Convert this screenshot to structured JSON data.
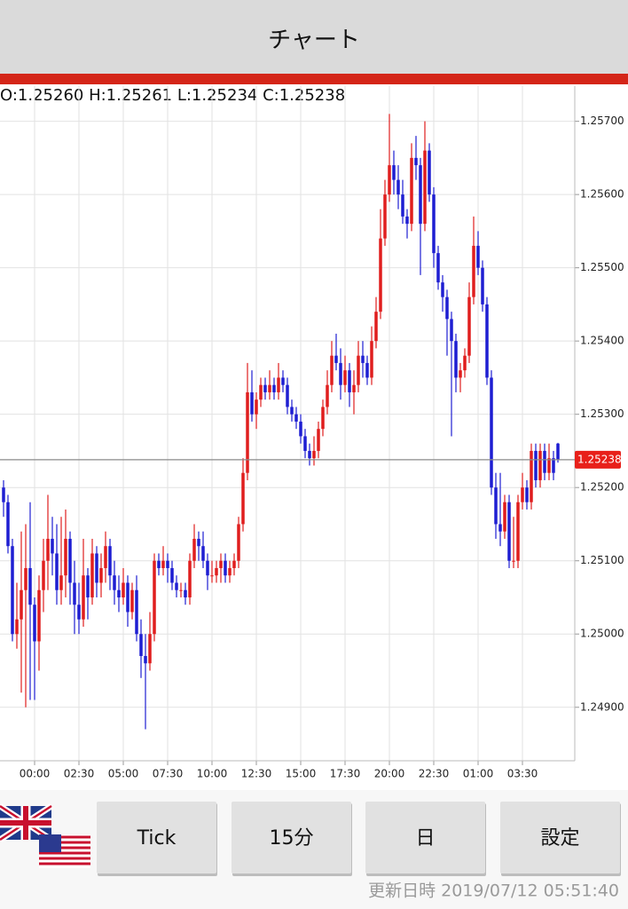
{
  "header": {
    "title": "チャート"
  },
  "chart_data": {
    "type": "candlestick",
    "ohlc_text": "O:1.25260 H:1.25261 L:1.25234 C:1.25238",
    "up_color": "#e01e1e",
    "down_color": "#1e1ed2",
    "grid": true,
    "ylim": [
      1.24827,
      1.25748
    ],
    "yticks": [
      {
        "value": 1.249,
        "label": "1.24900"
      },
      {
        "value": 1.25,
        "label": "1.25000"
      },
      {
        "value": 1.251,
        "label": "1.25100"
      },
      {
        "value": 1.252,
        "label": "1.25200"
      },
      {
        "value": 1.253,
        "label": "1.25300"
      },
      {
        "value": 1.254,
        "label": "1.25400"
      },
      {
        "value": 1.255,
        "label": "1.25500"
      },
      {
        "value": 1.256,
        "label": "1.25600"
      },
      {
        "value": 1.257,
        "label": "1.25700"
      }
    ],
    "xlim": [
      -0.8,
      128.8
    ],
    "xticks": [
      {
        "value": 7,
        "label": "00:00"
      },
      {
        "value": 17,
        "label": "02:30"
      },
      {
        "value": 27,
        "label": "05:00"
      },
      {
        "value": 37,
        "label": "07:30"
      },
      {
        "value": 47,
        "label": "10:00"
      },
      {
        "value": 57,
        "label": "12:30"
      },
      {
        "value": 67,
        "label": "15:00"
      },
      {
        "value": 77,
        "label": "17:30"
      },
      {
        "value": 87,
        "label": "20:00"
      },
      {
        "value": 97,
        "label": "22:30"
      },
      {
        "value": 107,
        "label": "01:00"
      },
      {
        "value": 117,
        "label": "03:30"
      }
    ],
    "last_price": {
      "value": 1.25238,
      "label": "1.25238"
    },
    "candles": [
      [
        1.252,
        1.2521,
        1.2516,
        1.2518
      ],
      [
        1.2518,
        1.2519,
        1.2511,
        1.2512
      ],
      [
        1.2512,
        1.2513,
        1.2499,
        1.25
      ],
      [
        1.25,
        1.2507,
        1.2498,
        1.2502
      ],
      [
        1.2502,
        1.2514,
        1.2492,
        1.2506
      ],
      [
        1.2506,
        1.2515,
        1.249,
        1.2509
      ],
      [
        1.2509,
        1.2518,
        1.2491,
        1.2504
      ],
      [
        1.2504,
        1.2505,
        1.2491,
        1.2499
      ],
      [
        1.2499,
        1.2508,
        1.2495,
        1.2506
      ],
      [
        1.2506,
        1.2513,
        1.2503,
        1.251
      ],
      [
        1.251,
        1.2519,
        1.2506,
        1.2513
      ],
      [
        1.2513,
        1.2516,
        1.2508,
        1.2511
      ],
      [
        1.2511,
        1.2515,
        1.2504,
        1.2506
      ],
      [
        1.2506,
        1.2516,
        1.2504,
        1.2508
      ],
      [
        1.2508,
        1.2517,
        1.2505,
        1.2513
      ],
      [
        1.2513,
        1.2514,
        1.2504,
        1.2507
      ],
      [
        1.2507,
        1.251,
        1.25,
        1.2504
      ],
      [
        1.2504,
        1.2507,
        1.25,
        1.2502
      ],
      [
        1.2502,
        1.2513,
        1.2501,
        1.2508
      ],
      [
        1.2508,
        1.2509,
        1.2502,
        1.2505
      ],
      [
        1.2505,
        1.2513,
        1.2504,
        1.2511
      ],
      [
        1.2511,
        1.2512,
        1.2505,
        1.2507
      ],
      [
        1.2507,
        1.2511,
        1.2505,
        1.2509
      ],
      [
        1.2509,
        1.2514,
        1.2507,
        1.2512
      ],
      [
        1.2512,
        1.2513,
        1.2506,
        1.2508
      ],
      [
        1.2508,
        1.251,
        1.2504,
        1.2506
      ],
      [
        1.2506,
        1.2508,
        1.2503,
        1.2505
      ],
      [
        1.2505,
        1.2509,
        1.2504,
        1.2507
      ],
      [
        1.2507,
        1.2508,
        1.2501,
        1.2503
      ],
      [
        1.2503,
        1.2507,
        1.2502,
        1.2506
      ],
      [
        1.2506,
        1.2508,
        1.2499,
        1.25
      ],
      [
        1.25,
        1.2502,
        1.2494,
        1.2497
      ],
      [
        1.2497,
        1.25,
        1.2487,
        1.2496
      ],
      [
        1.2496,
        1.2503,
        1.2495,
        1.25
      ],
      [
        1.25,
        1.2511,
        1.2499,
        1.251
      ],
      [
        1.251,
        1.2511,
        1.2508,
        1.2509
      ],
      [
        1.2509,
        1.2512,
        1.2508,
        1.251
      ],
      [
        1.251,
        1.2511,
        1.2507,
        1.2509
      ],
      [
        1.2509,
        1.251,
        1.2506,
        1.2507
      ],
      [
        1.2507,
        1.2508,
        1.2505,
        1.2506
      ],
      [
        1.2506,
        1.2507,
        1.2505,
        1.2506
      ],
      [
        1.2506,
        1.2507,
        1.2504,
        1.2505
      ],
      [
        1.2505,
        1.2511,
        1.2504,
        1.251
      ],
      [
        1.251,
        1.2515,
        1.2509,
        1.2513
      ],
      [
        1.2513,
        1.2514,
        1.251,
        1.2512
      ],
      [
        1.2512,
        1.2514,
        1.2509,
        1.251
      ],
      [
        1.251,
        1.2511,
        1.2506,
        1.2508
      ],
      [
        1.2508,
        1.251,
        1.2507,
        1.2508
      ],
      [
        1.2508,
        1.251,
        1.2507,
        1.2509
      ],
      [
        1.2509,
        1.2511,
        1.2507,
        1.251
      ],
      [
        1.251,
        1.2511,
        1.2507,
        1.2508
      ],
      [
        1.2508,
        1.251,
        1.2507,
        1.2509
      ],
      [
        1.2509,
        1.2511,
        1.2508,
        1.251
      ],
      [
        1.251,
        1.2516,
        1.2509,
        1.2515
      ],
      [
        1.2515,
        1.2524,
        1.2514,
        1.2522
      ],
      [
        1.2522,
        1.2537,
        1.2521,
        1.2533
      ],
      [
        1.2533,
        1.2536,
        1.2529,
        1.253
      ],
      [
        1.253,
        1.2533,
        1.2528,
        1.2532
      ],
      [
        1.2532,
        1.2535,
        1.2531,
        1.2534
      ],
      [
        1.2534,
        1.2535,
        1.2532,
        1.2533
      ],
      [
        1.2533,
        1.2536,
        1.2532,
        1.2534
      ],
      [
        1.2534,
        1.2535,
        1.2532,
        1.2533
      ],
      [
        1.2533,
        1.2537,
        1.2532,
        1.2535
      ],
      [
        1.2535,
        1.2536,
        1.2533,
        1.2534
      ],
      [
        1.2534,
        1.2535,
        1.253,
        1.2531
      ],
      [
        1.2531,
        1.2532,
        1.2529,
        1.253
      ],
      [
        1.253,
        1.2531,
        1.2528,
        1.2529
      ],
      [
        1.2529,
        1.253,
        1.2526,
        1.2527
      ],
      [
        1.2527,
        1.2528,
        1.2524,
        1.2525
      ],
      [
        1.2525,
        1.2526,
        1.2523,
        1.2524
      ],
      [
        1.2524,
        1.2527,
        1.2523,
        1.2525
      ],
      [
        1.2525,
        1.2529,
        1.2524,
        1.2528
      ],
      [
        1.2528,
        1.2532,
        1.2527,
        1.2531
      ],
      [
        1.2531,
        1.2536,
        1.253,
        1.2534
      ],
      [
        1.2534,
        1.254,
        1.2533,
        1.2538
      ],
      [
        1.2538,
        1.2541,
        1.2536,
        1.2537
      ],
      [
        1.2537,
        1.2539,
        1.2532,
        1.2534
      ],
      [
        1.2534,
        1.2538,
        1.2533,
        1.2536
      ],
      [
        1.2536,
        1.2537,
        1.2531,
        1.2533
      ],
      [
        1.2533,
        1.2536,
        1.253,
        1.2534
      ],
      [
        1.2534,
        1.254,
        1.2533,
        1.2538
      ],
      [
        1.2538,
        1.254,
        1.2535,
        1.2537
      ],
      [
        1.2537,
        1.2538,
        1.2534,
        1.2535
      ],
      [
        1.2535,
        1.2542,
        1.2534,
        1.254
      ],
      [
        1.254,
        1.2546,
        1.2539,
        1.2544
      ],
      [
        1.2544,
        1.2558,
        1.2543,
        1.2554
      ],
      [
        1.2554,
        1.2562,
        1.2553,
        1.256
      ],
      [
        1.256,
        1.2571,
        1.2559,
        1.2564
      ],
      [
        1.2564,
        1.2566,
        1.256,
        1.2562
      ],
      [
        1.2562,
        1.2564,
        1.2558,
        1.256
      ],
      [
        1.256,
        1.2562,
        1.2556,
        1.2557
      ],
      [
        1.2557,
        1.2558,
        1.2554,
        1.2556
      ],
      [
        1.2556,
        1.2567,
        1.2555,
        1.2565
      ],
      [
        1.2565,
        1.2568,
        1.2562,
        1.2564
      ],
      [
        1.2564,
        1.2565,
        1.2549,
        1.2556
      ],
      [
        1.2556,
        1.257,
        1.2555,
        1.2566
      ],
      [
        1.2566,
        1.2567,
        1.2559,
        1.256
      ],
      [
        1.256,
        1.2561,
        1.255,
        1.2552
      ],
      [
        1.2552,
        1.2553,
        1.2547,
        1.2548
      ],
      [
        1.2548,
        1.2549,
        1.2544,
        1.2546
      ],
      [
        1.2546,
        1.2547,
        1.2538,
        1.2543
      ],
      [
        1.2543,
        1.2544,
        1.2527,
        1.254
      ],
      [
        1.254,
        1.2541,
        1.2533,
        1.2535
      ],
      [
        1.2535,
        1.2537,
        1.2533,
        1.2536
      ],
      [
        1.2536,
        1.2539,
        1.2535,
        1.2538
      ],
      [
        1.2538,
        1.2548,
        1.2537,
        1.2546
      ],
      [
        1.2546,
        1.2557,
        1.2545,
        1.2553
      ],
      [
        1.2553,
        1.2555,
        1.2549,
        1.255
      ],
      [
        1.255,
        1.2551,
        1.2544,
        1.2545
      ],
      [
        1.2545,
        1.2546,
        1.2534,
        1.2535
      ],
      [
        1.2535,
        1.2536,
        1.2519,
        1.252
      ],
      [
        1.252,
        1.2522,
        1.2513,
        1.2515
      ],
      [
        1.2515,
        1.2522,
        1.2512,
        1.2514
      ],
      [
        1.2514,
        1.2519,
        1.2513,
        1.2518
      ],
      [
        1.2518,
        1.2519,
        1.2509,
        1.251
      ],
      [
        1.251,
        1.2516,
        1.2509,
        1.251
      ],
      [
        1.251,
        1.2519,
        1.2509,
        1.2518
      ],
      [
        1.2518,
        1.2522,
        1.2517,
        1.252
      ],
      [
        1.252,
        1.2521,
        1.2517,
        1.2518
      ],
      [
        1.2518,
        1.2526,
        1.2517,
        1.2525
      ],
      [
        1.2525,
        1.2526,
        1.252,
        1.2521
      ],
      [
        1.2521,
        1.2526,
        1.252,
        1.2525
      ],
      [
        1.2525,
        1.2526,
        1.2521,
        1.2522
      ],
      [
        1.2522,
        1.2526,
        1.2521,
        1.2524
      ],
      [
        1.2524,
        1.2525,
        1.2521,
        1.2522
      ],
      [
        1.2526,
        1.25261,
        1.25234,
        1.25238
      ]
    ]
  },
  "buttons": [
    "Tick",
    "15分",
    "日",
    "設定"
  ],
  "footer": {
    "updated": "更新日時 2019/07/12 05:51:40"
  }
}
